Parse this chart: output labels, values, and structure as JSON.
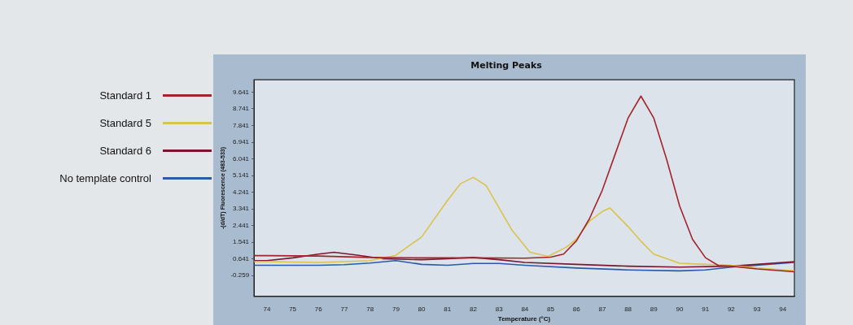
{
  "chart_data": {
    "type": "line",
    "title": "Melting Peaks",
    "xlabel": "Temperature (°C)",
    "ylabel": "-(d/dT) Fluorescence (483-533)",
    "xlim": [
      73.5,
      94.45
    ],
    "ylim": [
      -1.38,
      10.31
    ],
    "xticks": [
      74,
      75,
      76,
      77,
      78,
      79,
      80,
      81,
      82,
      83,
      84,
      85,
      86,
      87,
      88,
      89,
      90,
      91,
      92,
      93,
      94
    ],
    "yticks": [
      -0.259,
      0.641,
      1.541,
      2.441,
      3.341,
      4.241,
      5.141,
      6.041,
      6.941,
      7.841,
      8.741,
      9.641
    ],
    "legend": "left",
    "marker": "none",
    "series": [
      {
        "name": "Standard 1",
        "color": "#a5232b",
        "x": [
          73.5,
          74,
          76,
          78,
          80,
          82,
          84,
          85,
          85.5,
          86,
          86.5,
          87,
          87.5,
          88,
          88.5,
          89,
          89.5,
          90,
          90.5,
          91,
          91.5,
          92,
          93,
          94.45
        ],
        "values": [
          0.82,
          0.82,
          0.8,
          0.72,
          0.7,
          0.7,
          0.68,
          0.74,
          0.9,
          1.62,
          2.8,
          4.34,
          6.29,
          8.24,
          9.43,
          8.24,
          6.0,
          3.5,
          1.7,
          0.71,
          0.29,
          0.25,
          0.1,
          -0.05
        ]
      },
      {
        "name": "Standard 5",
        "color": "#d9c34a",
        "x": [
          73.5,
          74,
          76,
          77,
          78,
          79,
          80,
          81,
          81.5,
          82,
          82.5,
          83,
          83.5,
          84.2,
          84.9,
          85.6,
          86,
          86.5,
          87,
          87.3,
          88,
          88.5,
          89,
          90,
          91,
          92,
          93,
          94.45
        ],
        "values": [
          0.5,
          0.5,
          0.45,
          0.5,
          0.55,
          0.84,
          1.83,
          3.8,
          4.7,
          5.04,
          4.6,
          3.4,
          2.2,
          1.0,
          0.78,
          1.27,
          1.72,
          2.67,
          3.2,
          3.39,
          2.39,
          1.6,
          0.9,
          0.41,
          0.35,
          0.3,
          0.15,
          0.0
        ]
      },
      {
        "name": "Standard 6",
        "color": "#7b1530",
        "x": [
          73.5,
          74,
          75,
          76,
          76.6,
          77.5,
          78.5,
          80,
          81,
          82,
          83,
          84,
          86,
          88,
          90,
          92,
          93,
          94.45
        ],
        "values": [
          0.55,
          0.55,
          0.7,
          0.9,
          1.0,
          0.85,
          0.65,
          0.6,
          0.65,
          0.72,
          0.6,
          0.45,
          0.35,
          0.25,
          0.2,
          0.25,
          0.35,
          0.5
        ]
      },
      {
        "name": "No template control",
        "color": "#2a5aa8",
        "x": [
          73.5,
          74,
          76,
          77,
          78,
          79,
          80,
          81,
          82,
          83,
          84,
          86,
          88,
          90,
          91,
          92,
          93,
          94.45
        ],
        "values": [
          0.3,
          0.3,
          0.3,
          0.33,
          0.42,
          0.55,
          0.35,
          0.3,
          0.4,
          0.4,
          0.3,
          0.15,
          0.05,
          0.0,
          0.05,
          0.2,
          0.3,
          0.45
        ]
      }
    ]
  }
}
